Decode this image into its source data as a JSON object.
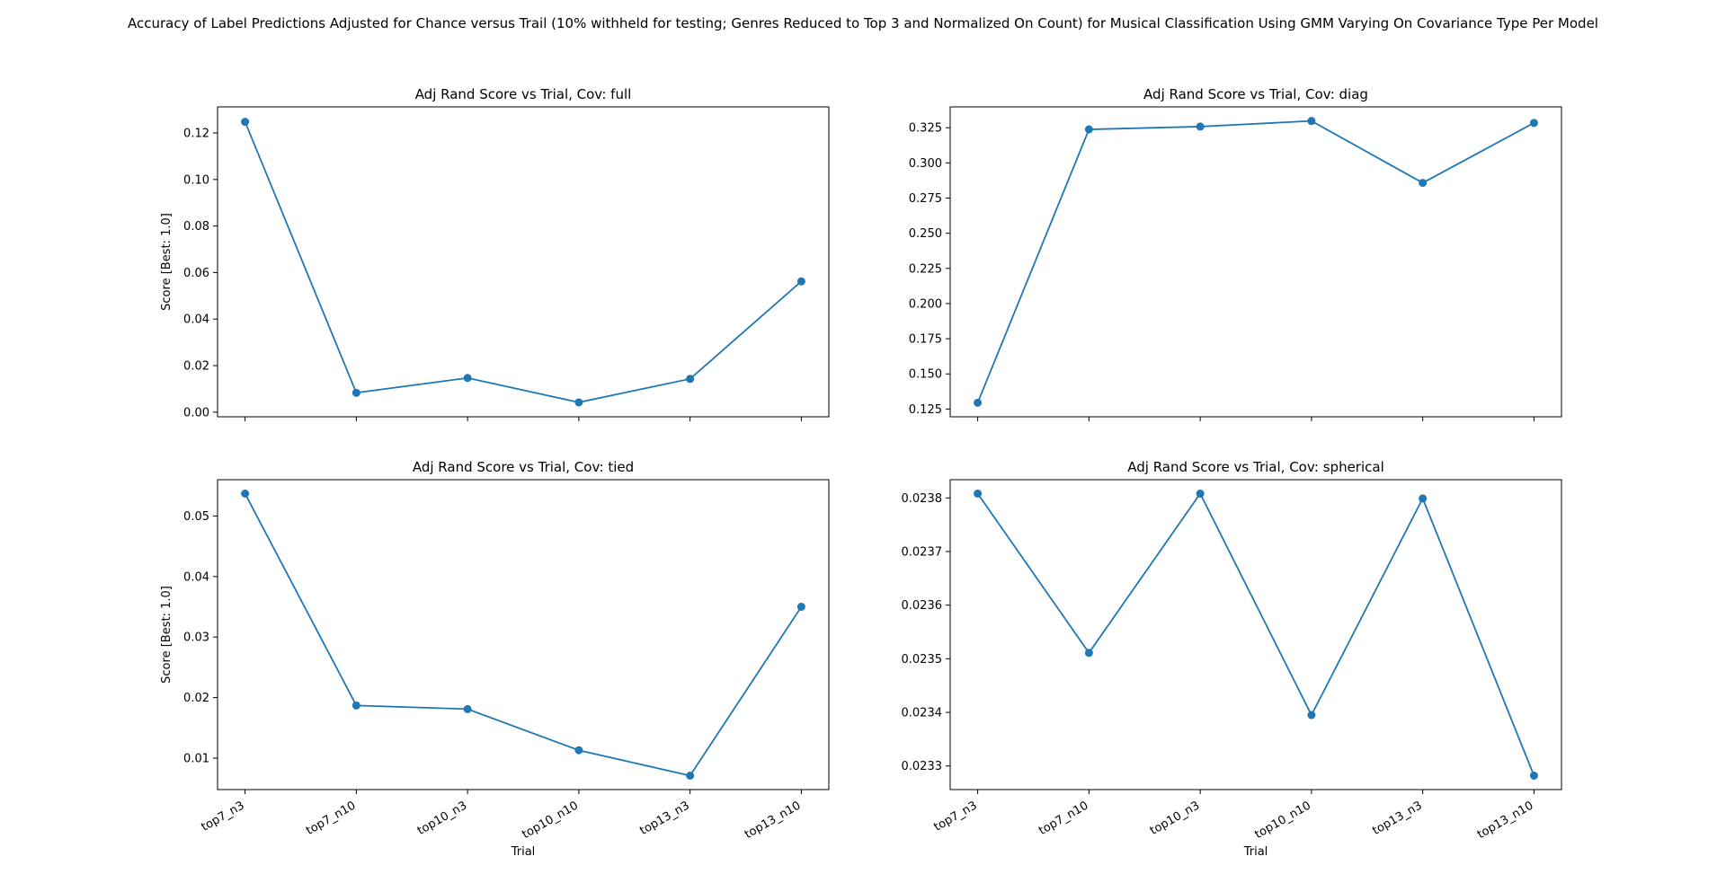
{
  "figure": {
    "suptitle": "Accuracy of Label Predictions Adjusted for Chance versus Trail (10% withheld for testing; Genres Reduced to Top 3 and Normalized On Count) for Musical Classification Using GMM Varying On Covariance Type Per Model"
  },
  "style": {
    "line_color": "#1f77b4",
    "axis_color": "#000000"
  },
  "chart_data": [
    {
      "type": "line",
      "title": "Adj Rand Score vs Trial, Cov: full",
      "xlabel": "",
      "ylabel": "Score [Best: 1.0]",
      "categories": [
        "top7_n3",
        "top7_n10",
        "top10_n3",
        "top10_n10",
        "top13_n3",
        "top13_n10"
      ],
      "show_xticklabels": false,
      "values": [
        0.1248,
        0.0083,
        0.0147,
        0.0042,
        0.0143,
        0.0562
      ],
      "ylim": [
        -0.002,
        0.1312
      ],
      "yticks": [
        0.0,
        0.02,
        0.04,
        0.06,
        0.08,
        0.1,
        0.12
      ],
      "ytick_labels": [
        "0.00",
        "0.02",
        "0.04",
        "0.06",
        "0.08",
        "0.10",
        "0.12"
      ],
      "grid": false,
      "marker": "circle"
    },
    {
      "type": "line",
      "title": "Adj Rand Score vs Trial, Cov: diag",
      "xlabel": "",
      "ylabel": "",
      "categories": [
        "top7_n3",
        "top7_n10",
        "top10_n3",
        "top10_n10",
        "top13_n3",
        "top13_n10"
      ],
      "show_xticklabels": false,
      "values": [
        0.1295,
        0.3238,
        0.3258,
        0.3298,
        0.2858,
        0.3284
      ],
      "ylim": [
        0.1195,
        0.3398
      ],
      "yticks": [
        0.125,
        0.15,
        0.175,
        0.2,
        0.225,
        0.25,
        0.275,
        0.3,
        0.325
      ],
      "ytick_labels": [
        "0.125",
        "0.150",
        "0.175",
        "0.200",
        "0.225",
        "0.250",
        "0.275",
        "0.300",
        "0.325"
      ],
      "grid": false,
      "marker": "circle"
    },
    {
      "type": "line",
      "title": "Adj Rand Score vs Trial, Cov: tied",
      "xlabel": "Trial",
      "ylabel": "Score [Best: 1.0]",
      "categories": [
        "top7_n3",
        "top7_n10",
        "top10_n3",
        "top10_n10",
        "top13_n3",
        "top13_n10"
      ],
      "show_xticklabels": true,
      "values": [
        0.0537,
        0.0187,
        0.0181,
        0.0113,
        0.0071,
        0.035
      ],
      "ylim": [
        0.0048,
        0.056
      ],
      "yticks": [
        0.01,
        0.02,
        0.03,
        0.04,
        0.05
      ],
      "ytick_labels": [
        "0.01",
        "0.02",
        "0.03",
        "0.04",
        "0.05"
      ],
      "grid": false,
      "marker": "circle"
    },
    {
      "type": "line",
      "title": "Adj Rand Score vs Trial, Cov: spherical",
      "xlabel": "Trial",
      "ylabel": "",
      "categories": [
        "top7_n3",
        "top7_n10",
        "top10_n3",
        "top10_n10",
        "top13_n3",
        "top13_n10"
      ],
      "show_xticklabels": true,
      "values": [
        0.023808,
        0.023511,
        0.023808,
        0.023395,
        0.023799,
        0.023282
      ],
      "ylim": [
        0.023256,
        0.023834
      ],
      "yticks": [
        0.0233,
        0.0234,
        0.0235,
        0.0236,
        0.0237,
        0.0238
      ],
      "ytick_labels": [
        "0.0233",
        "0.0234",
        "0.0235",
        "0.0236",
        "0.0237",
        "0.0238"
      ],
      "grid": false,
      "marker": "circle"
    }
  ]
}
